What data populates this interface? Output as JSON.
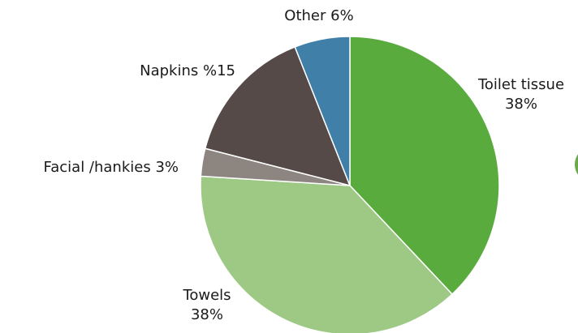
{
  "chart_data": {
    "type": "pie",
    "title": "",
    "slices": [
      {
        "name": "Toilet tissue",
        "value": 38,
        "color": "#5aab3e",
        "label_lines": [
          "Toilet tissue",
          "38%"
        ]
      },
      {
        "name": "Towels",
        "value": 38,
        "color": "#9dc985",
        "label_lines": [
          "Towels",
          "38%"
        ]
      },
      {
        "name": "Facial /hankies",
        "value": 3,
        "color": "#8c8580",
        "label_lines": [
          "Facial /hankies 3%"
        ]
      },
      {
        "name": "Napkins",
        "value": 15,
        "color": "#554a47",
        "label_lines": [
          "Napkins %15"
        ]
      },
      {
        "name": "Other",
        "value": 6,
        "color": "#3f7fa8",
        "label_lines": [
          "Other 6%"
        ]
      }
    ],
    "start_angle_deg": 0,
    "direction": "clockwise",
    "legend": "none"
  }
}
